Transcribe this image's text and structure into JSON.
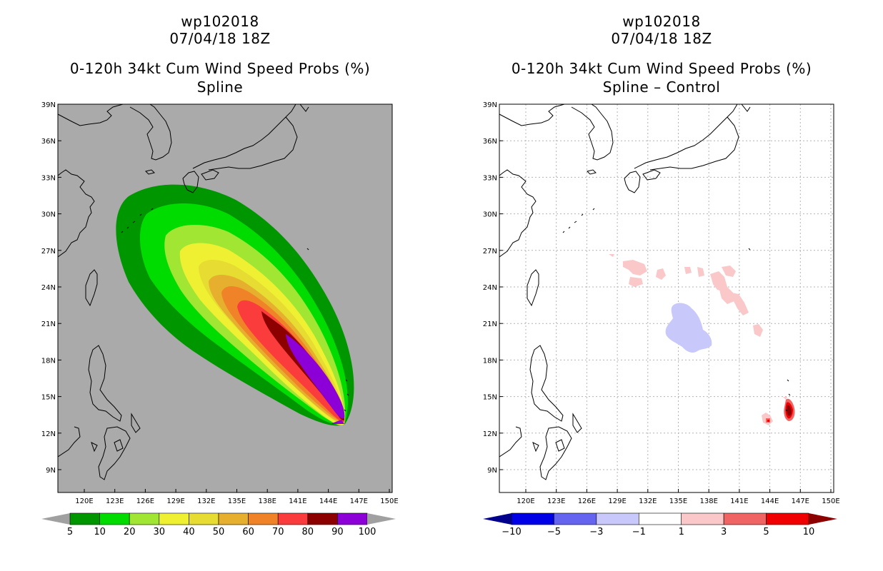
{
  "panels": [
    {
      "storm_id": "wp102018",
      "datetime": "07/04/18 18Z",
      "title": "0-120h 34kt Cum Wind Speed Probs (%)",
      "subtitle": "Spline",
      "colorbar": {
        "labels": [
          "5",
          "10",
          "20",
          "30",
          "40",
          "50",
          "60",
          "70",
          "80",
          "90",
          "100"
        ],
        "colors": [
          "#009600",
          "#00dc00",
          "#a0e632",
          "#f0f032",
          "#e6dc32",
          "#e6af2d",
          "#f08228",
          "#fa3c3c",
          "#8c0000",
          "#8c00d7"
        ],
        "left_arrow_color": "#a0a0a0",
        "right_arrow_color": "#a0a0a0"
      }
    },
    {
      "storm_id": "wp102018",
      "datetime": "07/04/18 18Z",
      "title": "0-120h 34kt Cum Wind Speed Probs (%)",
      "subtitle": "Spline – Control",
      "colorbar": {
        "labels": [
          "−10",
          "−5",
          "−3",
          "−1",
          "1",
          "3",
          "5",
          "10"
        ],
        "colors": [
          "#0000e6",
          "#6464f0",
          "#c8c8fa",
          "#ffffff",
          "#fac8c8",
          "#f06464",
          "#f00000"
        ],
        "left_arrow_color": "#00008c",
        "right_arrow_color": "#8c0000"
      }
    }
  ],
  "axes": {
    "lon_labels": [
      "120E",
      "123E",
      "126E",
      "129E",
      "132E",
      "135E",
      "138E",
      "141E",
      "144E",
      "147E",
      "150E"
    ],
    "lat_labels": [
      "39N",
      "36N",
      "33N",
      "30N",
      "27N",
      "24N",
      "21N",
      "18N",
      "15N",
      "12N",
      "9N"
    ]
  },
  "colors": {
    "ocean_left": "#aaaaaa",
    "ocean_right": "#ffffff",
    "coast": "#000000",
    "grid": "#b4b4b4"
  }
}
